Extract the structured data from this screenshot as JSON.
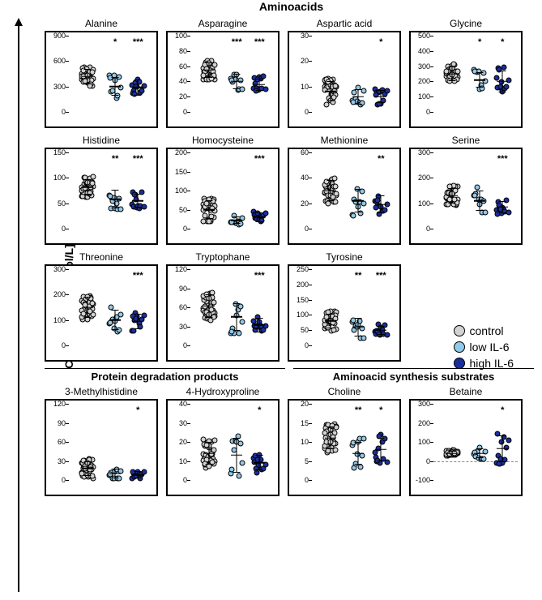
{
  "main_title": "Aminoacids",
  "y_axis_label": "Concentration [µmol/L]",
  "colors": {
    "control": "#d2d2d2",
    "low": "#92c8e8",
    "high": "#1a2f9e",
    "border": "#000000",
    "background": "#ffffff"
  },
  "legend": [
    {
      "label": "control",
      "color": "#d2d2d2"
    },
    {
      "label": "low IL-6",
      "color": "#92c8e8"
    },
    {
      "label": "high IL-6",
      "color": "#1a2f9e"
    }
  ],
  "groups_x": [
    0.22,
    0.55,
    0.82
  ],
  "jitter": [
    -0.07,
    -0.05,
    -0.03,
    -0.015,
    0,
    0.015,
    0.03,
    0.05,
    0.07,
    -0.06,
    -0.04,
    -0.02,
    0.01,
    0.02,
    0.04,
    0.06,
    -0.055,
    -0.035,
    -0.01,
    0.005,
    0.025,
    0.045,
    0.065,
    -0.065,
    -0.045,
    -0.025,
    0.0,
    0.02,
    0.04,
    0.06,
    -0.07,
    -0.05,
    -0.03,
    0.0,
    0.03,
    0.05,
    0.07,
    -0.04,
    0.0,
    0.04
  ],
  "sections": [
    {
      "header": null,
      "rows": [
        [
          {
            "title": "Alanine",
            "ylim": [
              0,
              900
            ],
            "yticks": [
              0,
              300,
              600,
              900
            ],
            "series": [
              {
                "n": 35,
                "mean": 420,
                "sd": 90
              },
              {
                "n": 10,
                "mean": 300,
                "sd": 110,
                "sig": "*"
              },
              {
                "n": 12,
                "mean": 290,
                "sd": 95,
                "sig": "***"
              }
            ]
          },
          {
            "title": "Asparagine",
            "ylim": [
              0,
              100
            ],
            "yticks": [
              0,
              20,
              40,
              60,
              80,
              100
            ],
            "series": [
              {
                "n": 35,
                "mean": 55,
                "sd": 10
              },
              {
                "n": 10,
                "mean": 40,
                "sd": 10,
                "sig": "***"
              },
              {
                "n": 12,
                "mean": 36,
                "sd": 8,
                "sig": "***"
              }
            ]
          },
          {
            "title": "Aspartic acid",
            "ylim": [
              0,
              30
            ],
            "yticks": [
              0,
              10,
              20,
              30
            ],
            "series": [
              {
                "n": 35,
                "mean": 8,
                "sd": 4
              },
              {
                "n": 10,
                "mean": 6,
                "sd": 3
              },
              {
                "n": 12,
                "mean": 6,
                "sd": 2.5,
                "sig": "*"
              }
            ]
          },
          {
            "title": "Glycine",
            "ylim": [
              0,
              500
            ],
            "yticks": [
              0,
              100,
              200,
              300,
              400,
              500
            ],
            "series": [
              {
                "n": 35,
                "mean": 250,
                "sd": 50
              },
              {
                "n": 10,
                "mean": 210,
                "sd": 50,
                "sig": "*"
              },
              {
                "n": 12,
                "mean": 200,
                "sd": 70,
                "sig": "*"
              }
            ]
          }
        ],
        [
          {
            "title": "Histidine",
            "ylim": [
              0,
              150
            ],
            "yticks": [
              0,
              50,
              100,
              150
            ],
            "series": [
              {
                "n": 35,
                "mean": 82,
                "sd": 15
              },
              {
                "n": 10,
                "mean": 58,
                "sd": 18,
                "sig": "**"
              },
              {
                "n": 12,
                "mean": 55,
                "sd": 14,
                "sig": "***"
              }
            ]
          },
          {
            "title": "Homocysteine",
            "ylim": [
              0,
              200
            ],
            "yticks": [
              0,
              50,
              100,
              150,
              200
            ],
            "series": [
              {
                "n": 35,
                "mean": 50,
                "sd": 25
              },
              {
                "n": 10,
                "mean": 22,
                "sd": 10
              },
              {
                "n": 12,
                "mean": 30,
                "sd": 12,
                "sig": "***"
              }
            ]
          },
          {
            "title": "Methionine",
            "ylim": [
              0,
              60
            ],
            "yticks": [
              0,
              20,
              40,
              60
            ],
            "series": [
              {
                "n": 35,
                "mean": 30,
                "sd": 8
              },
              {
                "n": 10,
                "mean": 22,
                "sd": 9
              },
              {
                "n": 12,
                "mean": 19,
                "sd": 7,
                "sig": "**"
              }
            ]
          },
          {
            "title": "Serine",
            "ylim": [
              0,
              300
            ],
            "yticks": [
              0,
              100,
              200,
              300
            ],
            "series": [
              {
                "n": 35,
                "mean": 130,
                "sd": 30
              },
              {
                "n": 10,
                "mean": 110,
                "sd": 40
              },
              {
                "n": 12,
                "mean": 85,
                "sd": 25,
                "sig": "***"
              }
            ]
          }
        ],
        [
          {
            "title": "Threonine",
            "ylim": [
              0,
              300
            ],
            "yticks": [
              0,
              100,
              200,
              300
            ],
            "series": [
              {
                "n": 35,
                "mean": 150,
                "sd": 40
              },
              {
                "n": 10,
                "mean": 100,
                "sd": 40
              },
              {
                "n": 12,
                "mean": 95,
                "sd": 30,
                "sig": "***"
              }
            ]
          },
          {
            "title": "Tryptophane",
            "ylim": [
              0,
              120
            ],
            "yticks": [
              0,
              30,
              60,
              90,
              120
            ],
            "series": [
              {
                "n": 35,
                "mean": 62,
                "sd": 18
              },
              {
                "n": 10,
                "mean": 45,
                "sd": 22
              },
              {
                "n": 12,
                "mean": 32,
                "sd": 12,
                "sig": "***"
              }
            ]
          },
          {
            "title": "Tyrosine",
            "ylim": [
              0,
              250
            ],
            "yticks": [
              0,
              50,
              100,
              150,
              200,
              250
            ],
            "series": [
              {
                "n": 35,
                "mean": 80,
                "sd": 25
              },
              {
                "n": 10,
                "mean": 60,
                "sd": 30,
                "sig": "**"
              },
              {
                "n": 12,
                "mean": 50,
                "sd": 15,
                "sig": "***"
              }
            ]
          }
        ]
      ]
    },
    {
      "header": [
        {
          "label": "Protein degradation products",
          "span": 2
        },
        {
          "label": "Aminoacid synthesis substrates",
          "span": 2
        }
      ],
      "rows": [
        [
          {
            "title": "3-Methylhistidine",
            "ylim": [
              0,
              120
            ],
            "yticks": [
              0,
              30,
              60,
              90,
              120
            ],
            "series": [
              {
                "n": 35,
                "mean": 18,
                "sd": 12
              },
              {
                "n": 10,
                "mean": 10,
                "sd": 8
              },
              {
                "n": 12,
                "mean": 8,
                "sd": 6,
                "sig": "*"
              }
            ]
          },
          {
            "title": "4-Hydroxyproline",
            "ylim": [
              0,
              40
            ],
            "yticks": [
              0,
              10,
              20,
              30,
              40
            ],
            "series": [
              {
                "n": 35,
                "mean": 14,
                "sd": 6
              },
              {
                "n": 10,
                "mean": 13,
                "sd": 9
              },
              {
                "n": 12,
                "mean": 9,
                "sd": 4,
                "sig": "*"
              }
            ]
          },
          {
            "title": "Choline",
            "ylim": [
              0,
              20
            ],
            "yticks": [
              0,
              5,
              10,
              15,
              20
            ],
            "series": [
              {
                "n": 35,
                "mean": 11,
                "sd": 3
              },
              {
                "n": 10,
                "mean": 7,
                "sd": 3,
                "sig": "**"
              },
              {
                "n": 12,
                "mean": 8,
                "sd": 3,
                "sig": "*"
              }
            ]
          },
          {
            "title": "Betaine",
            "ylim": [
              -100,
              300
            ],
            "yticks": [
              -100,
              0,
              100,
              200,
              300
            ],
            "dashed_zero": true,
            "series": [
              {
                "n": 35,
                "mean": 40,
                "sd": 15
              },
              {
                "n": 10,
                "mean": 40,
                "sd": 25
              },
              {
                "n": 12,
                "mean": 65,
                "sd": 70,
                "sig": "*"
              }
            ]
          }
        ]
      ]
    }
  ]
}
